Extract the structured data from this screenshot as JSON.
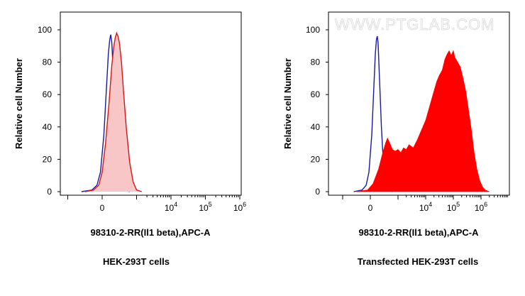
{
  "watermark": "WWW.PTGLAB.COM",
  "chart_data": [
    {
      "type": "area",
      "panel": "left",
      "title": "HEK-293T cells",
      "xlabel": "98310-2-RR(Il1 beta),APC-A",
      "ylabel": "Relative cell Number",
      "ylim": [
        0,
        100
      ],
      "yticks": [
        0,
        20,
        40,
        60,
        80,
        100
      ],
      "xticks": [
        {
          "base": "0",
          "exp": ""
        },
        {
          "base": "10",
          "exp": "4"
        },
        {
          "base": "10",
          "exp": "5"
        },
        {
          "base": "10",
          "exp": "6"
        }
      ],
      "series": [
        {
          "role": "isotype-control",
          "style": "line",
          "color": "#1a1aa0",
          "points": [
            [
              -0.6,
              0
            ],
            [
              -0.3,
              1
            ],
            [
              -0.15,
              4
            ],
            [
              -0.05,
              12
            ],
            [
              0.05,
              35
            ],
            [
              0.12,
              62
            ],
            [
              0.18,
              85
            ],
            [
              0.22,
              94
            ],
            [
              0.25,
              97
            ],
            [
              0.28,
              92
            ],
            [
              0.33,
              70
            ],
            [
              0.4,
              40
            ],
            [
              0.48,
              15
            ],
            [
              0.56,
              4
            ],
            [
              0.65,
              1
            ],
            [
              0.8,
              0
            ]
          ]
        },
        {
          "role": "antibody-stained",
          "style": "line-filled",
          "color": "#d81515",
          "fill": "#f8c6c6",
          "points": [
            [
              -0.5,
              0
            ],
            [
              -0.25,
              1
            ],
            [
              -0.1,
              4
            ],
            [
              0.0,
              12
            ],
            [
              0.1,
              30
            ],
            [
              0.2,
              55
            ],
            [
              0.28,
              78
            ],
            [
              0.34,
              90
            ],
            [
              0.38,
              95
            ],
            [
              0.42,
              98
            ],
            [
              0.46,
              96
            ],
            [
              0.5,
              92
            ],
            [
              0.56,
              80
            ],
            [
              0.62,
              62
            ],
            [
              0.7,
              40
            ],
            [
              0.8,
              18
            ],
            [
              0.9,
              6
            ],
            [
              1.0,
              1
            ],
            [
              1.15,
              0
            ]
          ]
        }
      ]
    },
    {
      "type": "area",
      "panel": "right",
      "title": "Transfected HEK-293T cells",
      "xlabel": "98310-2-RR(Il1 beta),APC-A",
      "ylabel": "Relative cell Number",
      "ylim": [
        0,
        100
      ],
      "yticks": [
        0,
        20,
        40,
        60,
        80,
        100
      ],
      "xticks": [
        {
          "base": "0",
          "exp": ""
        },
        {
          "base": "10",
          "exp": "4"
        },
        {
          "base": "10",
          "exp": "5"
        },
        {
          "base": "10",
          "exp": "6"
        }
      ],
      "series": [
        {
          "role": "isotype-control",
          "style": "line",
          "color": "#1a1aa0",
          "points": [
            [
              -0.6,
              0
            ],
            [
              -0.3,
              1
            ],
            [
              -0.15,
              4
            ],
            [
              -0.05,
              12
            ],
            [
              0.05,
              35
            ],
            [
              0.12,
              62
            ],
            [
              0.18,
              85
            ],
            [
              0.22,
              94
            ],
            [
              0.25,
              96
            ],
            [
              0.28,
              92
            ],
            [
              0.33,
              70
            ],
            [
              0.4,
              40
            ],
            [
              0.48,
              15
            ],
            [
              0.56,
              4
            ],
            [
              0.65,
              1
            ],
            [
              0.8,
              0
            ]
          ]
        },
        {
          "role": "antibody-stained",
          "style": "filled",
          "color": "#ff0000",
          "fill": "#ff0000",
          "points": [
            [
              -0.5,
              0
            ],
            [
              -0.1,
              1
            ],
            [
              0.1,
              5
            ],
            [
              0.3,
              14
            ],
            [
              0.45,
              24
            ],
            [
              0.55,
              30
            ],
            [
              0.62,
              33
            ],
            [
              0.7,
              30
            ],
            [
              0.8,
              26
            ],
            [
              0.9,
              25
            ],
            [
              1.0,
              26
            ],
            [
              1.1,
              24
            ],
            [
              1.2,
              27
            ],
            [
              1.3,
              26
            ],
            [
              1.4,
              29
            ],
            [
              1.55,
              27
            ],
            [
              1.7,
              32
            ],
            [
              1.85,
              38
            ],
            [
              2.0,
              44
            ],
            [
              2.1,
              50
            ],
            [
              2.2,
              56
            ],
            [
              2.3,
              62
            ],
            [
              2.4,
              68
            ],
            [
              2.5,
              72
            ],
            [
              2.6,
              75
            ],
            [
              2.7,
              82
            ],
            [
              2.78,
              85
            ],
            [
              2.85,
              87
            ],
            [
              2.92,
              84
            ],
            [
              3.0,
              87
            ],
            [
              3.05,
              83
            ],
            [
              3.15,
              80
            ],
            [
              3.25,
              77
            ],
            [
              3.35,
              70
            ],
            [
              3.45,
              62
            ],
            [
              3.55,
              50
            ],
            [
              3.65,
              38
            ],
            [
              3.75,
              24
            ],
            [
              3.85,
              14
            ],
            [
              3.95,
              7
            ],
            [
              4.05,
              3
            ],
            [
              4.15,
              1
            ],
            [
              4.3,
              0
            ]
          ]
        }
      ]
    }
  ]
}
